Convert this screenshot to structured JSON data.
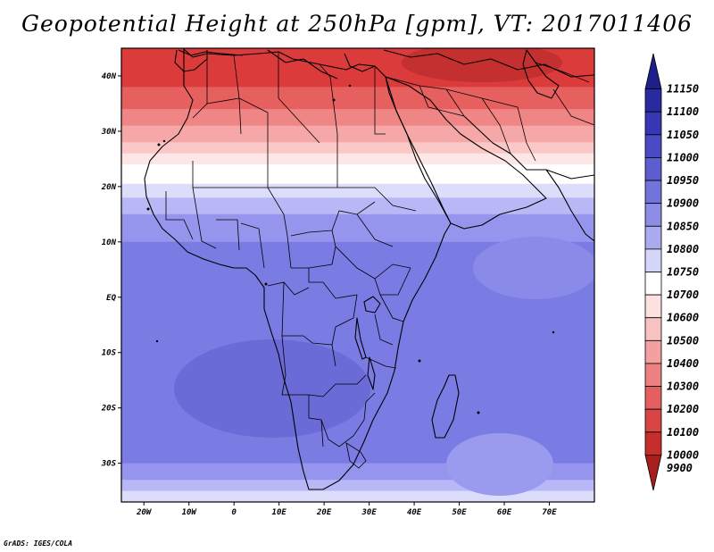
{
  "title": "Geopotential Height at 250hPa [gpm], VT: 2017011406",
  "credit": "GrADS: IGES/COLA",
  "map": {
    "region": "Africa",
    "variable": "Geopotential Height",
    "level_hpa": 250,
    "units": "gpm",
    "valid_time": "2017011406",
    "lon_range": [
      -25,
      80
    ],
    "lat_range": [
      -37,
      45
    ],
    "lon_ticks": [
      {
        "value": -20,
        "label": "20W"
      },
      {
        "value": -10,
        "label": "10W"
      },
      {
        "value": 0,
        "label": "0"
      },
      {
        "value": 10,
        "label": "10E"
      },
      {
        "value": 20,
        "label": "20E"
      },
      {
        "value": 30,
        "label": "30E"
      },
      {
        "value": 40,
        "label": "40E"
      },
      {
        "value": 50,
        "label": "50E"
      },
      {
        "value": 60,
        "label": "60E"
      },
      {
        "value": 70,
        "label": "70E"
      }
    ],
    "lat_ticks": [
      {
        "value": 40,
        "label": "40N"
      },
      {
        "value": 30,
        "label": "30N"
      },
      {
        "value": 20,
        "label": "20N"
      },
      {
        "value": 10,
        "label": "10N"
      },
      {
        "value": 0,
        "label": "EQ"
      },
      {
        "value": -10,
        "label": "10S"
      },
      {
        "value": -20,
        "label": "20S"
      },
      {
        "value": -30,
        "label": "30S"
      }
    ],
    "bands": [
      {
        "lat_from": 45,
        "lat_to": 38,
        "color": "#db3b3b",
        "value": 10100
      },
      {
        "lat_from": 38,
        "lat_to": 34,
        "color": "#e66060",
        "value": 10200
      },
      {
        "lat_from": 34,
        "lat_to": 31,
        "color": "#ef8585",
        "value": 10300
      },
      {
        "lat_from": 31,
        "lat_to": 28,
        "color": "#f6a8a8",
        "value": 10400
      },
      {
        "lat_from": 28,
        "lat_to": 26,
        "color": "#fbc8c8",
        "value": 10500
      },
      {
        "lat_from": 26,
        "lat_to": 24,
        "color": "#fde6e6",
        "value": 10600
      },
      {
        "lat_from": 24,
        "lat_to": 20.5,
        "color": "#ffffff",
        "value": 10700
      },
      {
        "lat_from": 20.5,
        "lat_to": 18,
        "color": "#dcdcfb",
        "value": 10750
      },
      {
        "lat_from": 18,
        "lat_to": 15,
        "color": "#b8b8f6",
        "value": 10800
      },
      {
        "lat_from": 15,
        "lat_to": 10,
        "color": "#9595ee",
        "value": 10850
      },
      {
        "lat_from": 10,
        "lat_to": -30,
        "color": "#7b7be4",
        "value": 10900
      },
      {
        "lat_from": -30,
        "lat_to": -33,
        "color": "#9595ee",
        "value": 10850
      },
      {
        "lat_from": -33,
        "lat_to": -35,
        "color": "#b8b8f6",
        "value": 10800
      },
      {
        "lat_from": -35,
        "lat_to": -37,
        "color": "#dcdcfb",
        "value": 10750
      }
    ]
  },
  "colorbar": {
    "levels": [
      {
        "label": "11150",
        "color": "#1f1f8c"
      },
      {
        "label": "11100",
        "color": "#2a2aa0"
      },
      {
        "label": "11050",
        "color": "#3737b4"
      },
      {
        "label": "11000",
        "color": "#4a4ac4"
      },
      {
        "label": "10950",
        "color": "#5d5dd0"
      },
      {
        "label": "10900",
        "color": "#7373dc"
      },
      {
        "label": "10850",
        "color": "#8d8de6"
      },
      {
        "label": "10800",
        "color": "#aaaaef"
      },
      {
        "label": "10750",
        "color": "#d6d6fa"
      },
      {
        "label": "10700",
        "color": "#ffffff"
      },
      {
        "label": "10600",
        "color": "#fde0e0"
      },
      {
        "label": "10500",
        "color": "#f9c2c2"
      },
      {
        "label": "10400",
        "color": "#f3a0a0"
      },
      {
        "label": "10300",
        "color": "#ec8181"
      },
      {
        "label": "10200",
        "color": "#e46060"
      },
      {
        "label": "10100",
        "color": "#d94444"
      },
      {
        "label": "10000",
        "color": "#c62d2d"
      },
      {
        "label": "9900",
        "color": "#a81e1e"
      }
    ]
  }
}
